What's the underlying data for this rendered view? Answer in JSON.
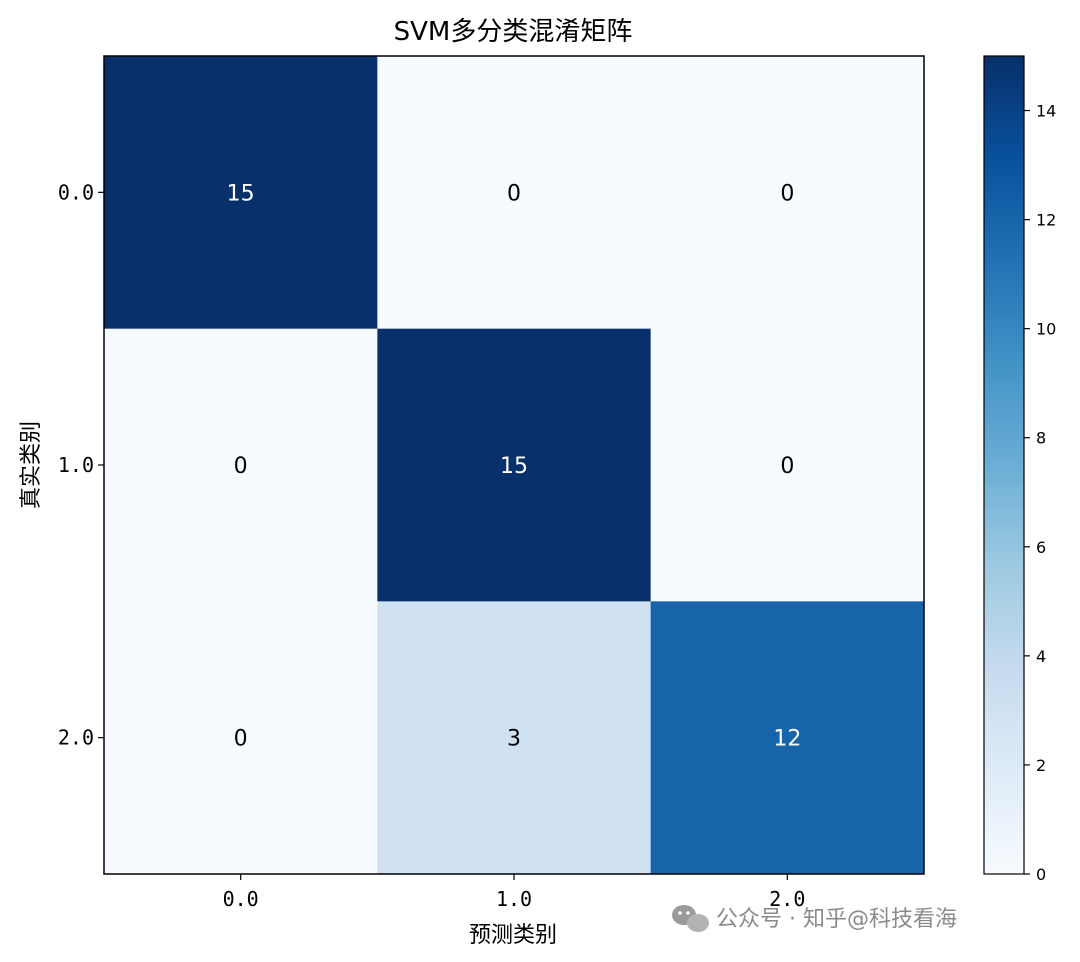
{
  "chart_data": {
    "type": "heatmap",
    "title": "SVM多分类混淆矩阵",
    "xlabel": "预测类别",
    "ylabel": "真实类别",
    "x_categories": [
      "0.0",
      "1.0",
      "2.0"
    ],
    "y_categories": [
      "0.0",
      "1.0",
      "2.0"
    ],
    "values": [
      [
        15,
        0,
        0
      ],
      [
        0,
        15,
        0
      ],
      [
        0,
        3,
        12
      ]
    ],
    "colormap": "Blues",
    "colorbar": {
      "range": [
        0,
        15
      ],
      "ticks": [
        "0",
        "2",
        "4",
        "6",
        "8",
        "10",
        "12",
        "14"
      ]
    }
  },
  "colors": {
    "low": "#f7fbff",
    "high": "#08306b"
  },
  "watermark": {
    "text": "公众号 · 知乎@科技看海",
    "icon": "wechat-icon"
  }
}
